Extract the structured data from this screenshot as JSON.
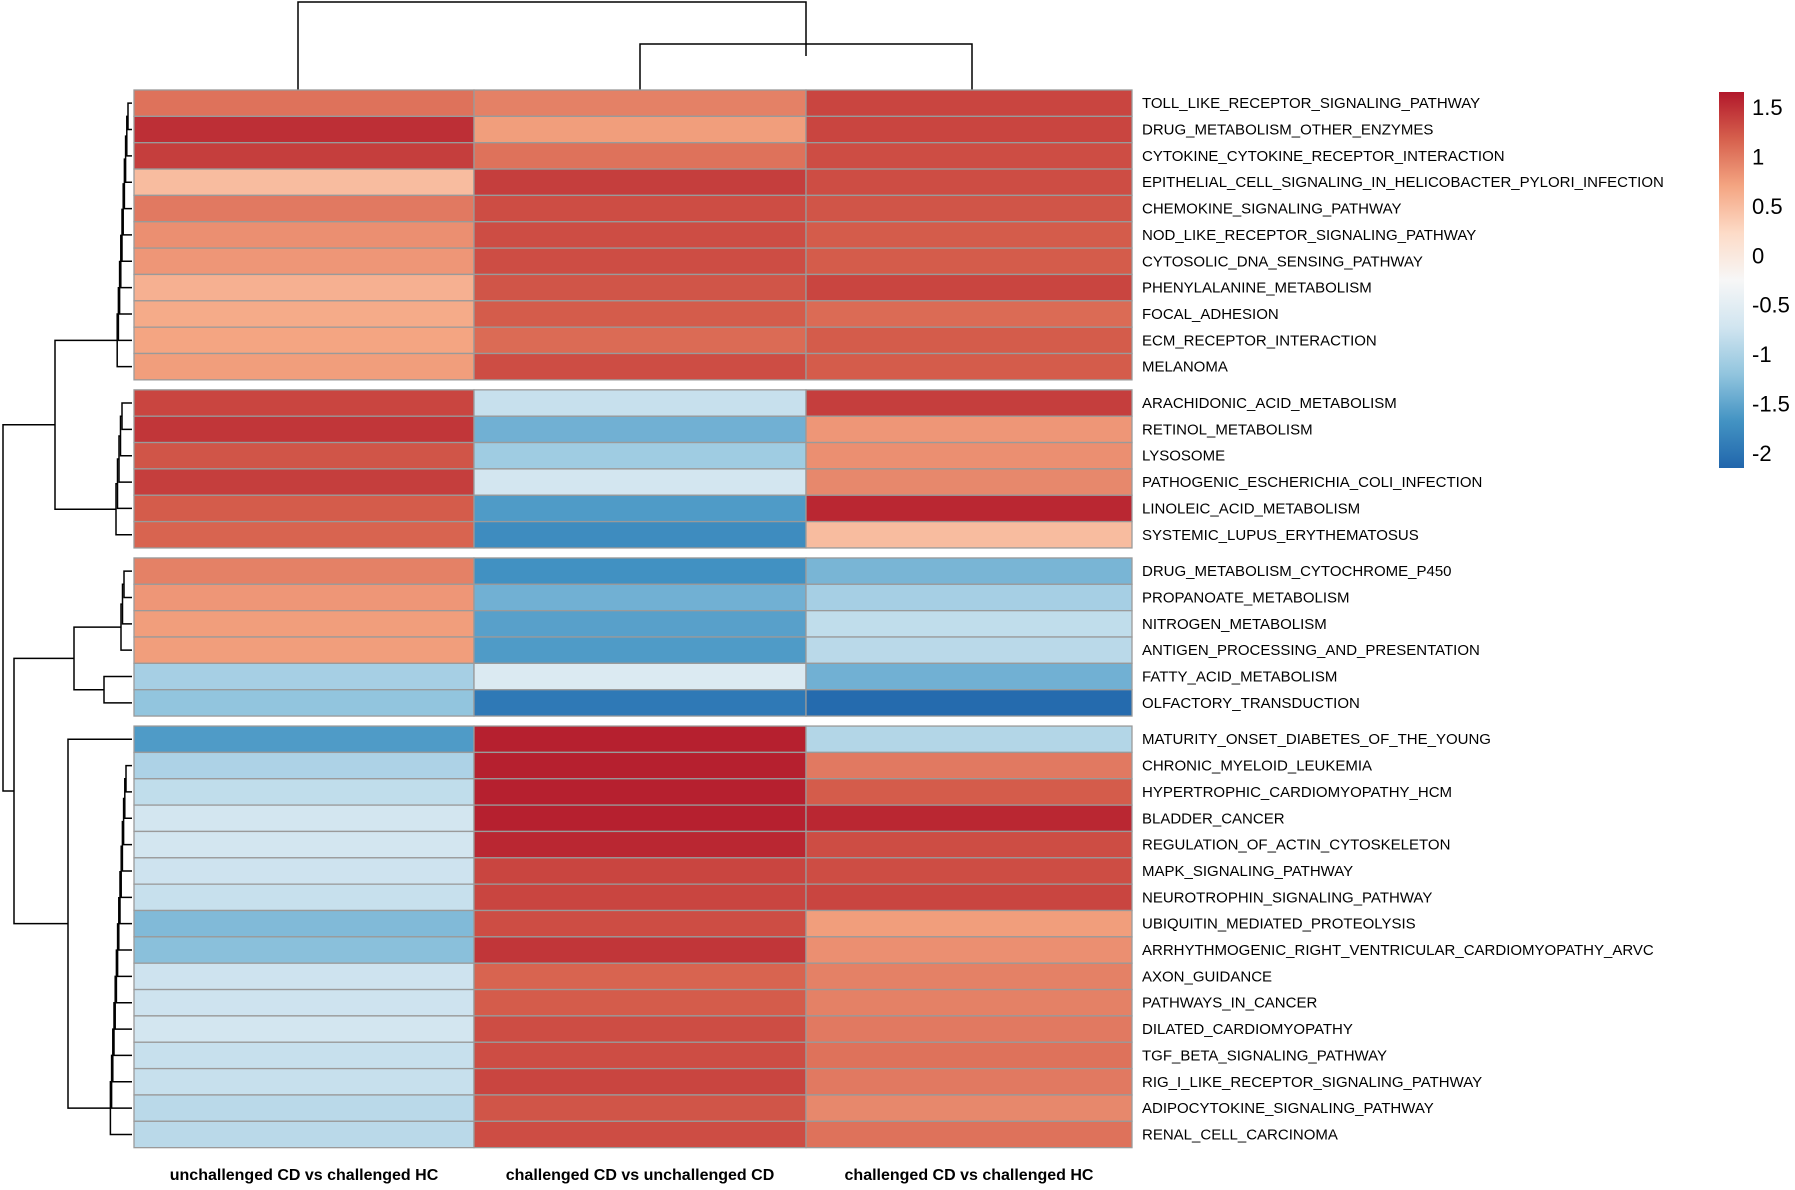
{
  "chart_data": {
    "type": "heatmap",
    "title": "",
    "columns": [
      "unchallenged CD vs challenged HC",
      "challenged CD vs unchallenged CD",
      "challenged CD vs challenged HC"
    ],
    "rows": [
      "TOLL_LIKE_RECEPTOR_SIGNALING_PATHWAY",
      "DRUG_METABOLISM_OTHER_ENZYMES",
      "CYTOKINE_CYTOKINE_RECEPTOR_INTERACTION",
      "EPITHELIAL_CELL_SIGNALING_IN_HELICOBACTER_PYLORI_INFECTION",
      "CHEMOKINE_SIGNALING_PATHWAY",
      "NOD_LIKE_RECEPTOR_SIGNALING_PATHWAY",
      "CYTOSOLIC_DNA_SENSING_PATHWAY",
      "PHENYLALANINE_METABOLISM",
      "FOCAL_ADHESION",
      "ECM_RECEPTOR_INTERACTION",
      "MELANOMA",
      "ARACHIDONIC_ACID_METABOLISM",
      "RETINOL_METABOLISM",
      "LYSOSOME",
      "PATHOGENIC_ESCHERICHIA_COLI_INFECTION",
      "LINOLEIC_ACID_METABOLISM",
      "SYSTEMIC_LUPUS_ERYTHEMATOSUS",
      "DRUG_METABOLISM_CYTOCHROME_P450",
      "PROPANOATE_METABOLISM",
      "NITROGEN_METABOLISM",
      "ANTIGEN_PROCESSING_AND_PRESENTATION",
      "FATTY_ACID_METABOLISM",
      "OLFACTORY_TRANSDUCTION",
      "MATURITY_ONSET_DIABETES_OF_THE_YOUNG",
      "CHRONIC_MYELOID_LEUKEMIA",
      "HYPERTROPHIC_CARDIOMYOPATHY_HCM",
      "BLADDER_CANCER",
      "REGULATION_OF_ACTIN_CYTOSKELETON",
      "MAPK_SIGNALING_PATHWAY",
      "NEUROTROPHIN_SIGNALING_PATHWAY",
      "UBIQUITIN_MEDIATED_PROTEOLYSIS",
      "ARRHYTHMOGENIC_RIGHT_VENTRICULAR_CARDIOMYOPATHY_ARVC",
      "AXON_GUIDANCE",
      "PATHWAYS_IN_CANCER",
      "DILATED_CARDIOMYOPATHY",
      "TGF_BETA_SIGNALING_PATHWAY",
      "RIG_I_LIKE_RECEPTOR_SIGNALING_PATHWAY",
      "ADIPOCYTOKINE_SIGNALING_PATHWAY",
      "RENAL_CELL_CARCINOMA"
    ],
    "row_clusters": [
      11,
      6,
      6,
      16
    ],
    "values": [
      [
        1.05,
        0.95,
        1.35
      ],
      [
        1.5,
        0.75,
        1.35
      ],
      [
        1.4,
        1.05,
        1.3
      ],
      [
        0.5,
        1.4,
        1.3
      ],
      [
        1.0,
        1.3,
        1.25
      ],
      [
        0.85,
        1.3,
        1.2
      ],
      [
        0.8,
        1.3,
        1.2
      ],
      [
        0.6,
        1.25,
        1.35
      ],
      [
        0.65,
        1.2,
        1.1
      ],
      [
        0.7,
        1.1,
        1.2
      ],
      [
        0.75,
        1.3,
        1.2
      ],
      [
        1.35,
        -0.8,
        1.4
      ],
      [
        1.45,
        -1.4,
        0.8
      ],
      [
        1.25,
        -1.1,
        0.85
      ],
      [
        1.4,
        -0.7,
        0.9
      ],
      [
        1.2,
        -1.6,
        1.55
      ],
      [
        1.15,
        -1.75,
        0.5
      ],
      [
        0.95,
        -1.7,
        -1.35
      ],
      [
        0.8,
        -1.4,
        -1.05
      ],
      [
        0.75,
        -1.55,
        -0.85
      ],
      [
        0.75,
        -1.6,
        -0.9
      ],
      [
        -1.05,
        -0.6,
        -1.4
      ],
      [
        -1.2,
        -1.95,
        -2.1
      ],
      [
        -1.6,
        1.6,
        -0.95
      ],
      [
        -1.0,
        1.6,
        1.0
      ],
      [
        -0.85,
        1.6,
        1.2
      ],
      [
        -0.7,
        1.6,
        1.55
      ],
      [
        -0.7,
        1.55,
        1.3
      ],
      [
        -0.75,
        1.35,
        1.3
      ],
      [
        -0.8,
        1.35,
        1.35
      ],
      [
        -1.3,
        1.3,
        0.75
      ],
      [
        -1.25,
        1.45,
        0.85
      ],
      [
        -0.75,
        1.15,
        0.95
      ],
      [
        -0.75,
        1.2,
        0.95
      ],
      [
        -0.7,
        1.3,
        1.0
      ],
      [
        -0.8,
        1.3,
        1.05
      ],
      [
        -0.8,
        1.35,
        1.0
      ],
      [
        -0.9,
        1.25,
        0.9
      ],
      [
        -0.9,
        1.3,
        1.05
      ]
    ],
    "legend": {
      "ticks": [
        "1.5",
        "1",
        "0.5",
        "0",
        "-0.5",
        "-1",
        "-1.5",
        "-2"
      ],
      "tick_values": [
        1.5,
        1,
        0.5,
        0,
        -0.5,
        -1,
        -1.5,
        -2
      ],
      "min": -2.15,
      "max": 1.65,
      "colors": [
        "#2166ac",
        "#4393c3",
        "#92c5de",
        "#d1e5f0",
        "#f7f7f7",
        "#fddbc7",
        "#f4a582",
        "#d6604d",
        "#b2182b"
      ]
    },
    "column_dendrogram": "((col1),(col2,col3))",
    "legend_position": "right"
  }
}
